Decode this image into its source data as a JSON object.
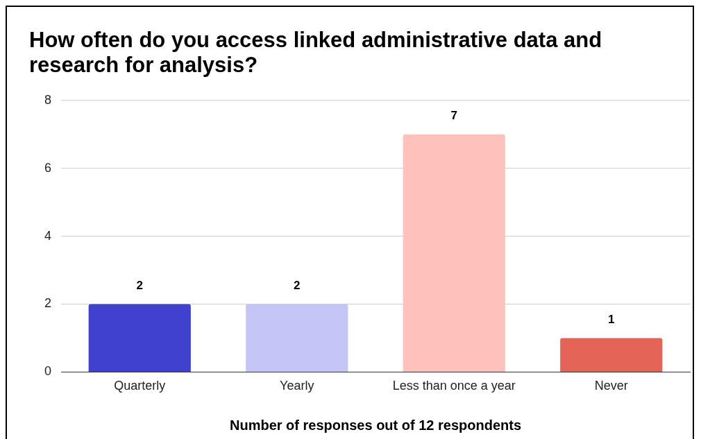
{
  "chart_data": {
    "type": "bar",
    "title": "How often do you access linked administrative data and research for analysis?",
    "xlabel": "Number of responses out of 12 respondents",
    "categories": [
      "Quarterly",
      "Yearly",
      "Less than once a year",
      "Never"
    ],
    "values": [
      2,
      2,
      7,
      1
    ],
    "colors": [
      "#4141d0",
      "#c5c5f7",
      "#ffc1bb",
      "#e46457"
    ],
    "ylim": [
      0,
      8
    ],
    "yticks": [
      0,
      2,
      4,
      6,
      8
    ],
    "grid": "y",
    "data_labels": true,
    "legend": false
  }
}
